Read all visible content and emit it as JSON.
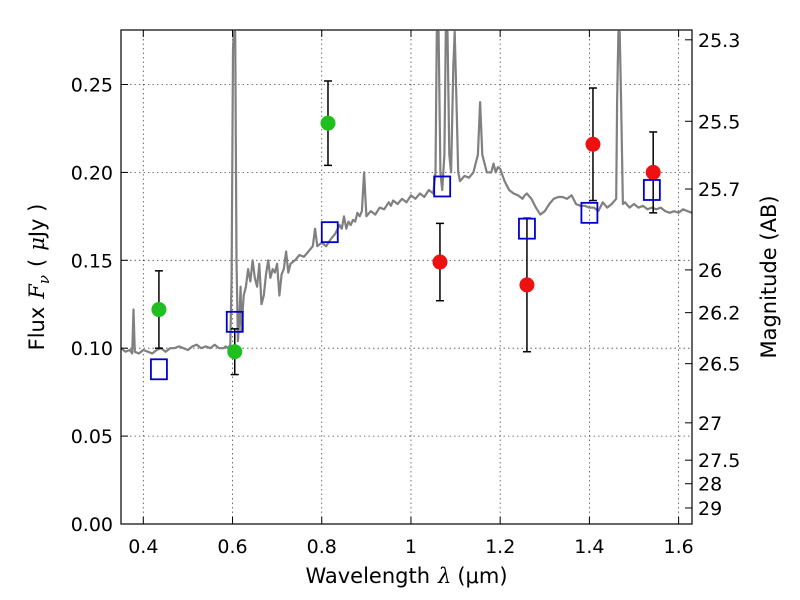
{
  "chart_data": {
    "type": "scatter",
    "xlabel": "Wavelength",
    "xlabel_symbol": "λ",
    "xlabel_unit": "(μm)",
    "ylabel": "Flux",
    "ylabel_symbol": "F",
    "ylabel_subscript": "ν",
    "ylabel_unit_open": "(",
    "ylabel_unit_mu": "μ",
    "ylabel_unit_rest": "Jy )",
    "y2label": "Magnitude (AB)",
    "xlim": [
      0.35,
      1.63
    ],
    "ylim": [
      0.0,
      0.281
    ],
    "grid": true,
    "x_ticks": [
      0.4,
      0.6,
      0.8,
      1.0,
      1.2,
      1.4,
      1.6
    ],
    "x_tick_labels": [
      "0.4",
      "0.6",
      "0.8",
      "1",
      "1.2",
      "1.4",
      "1.6"
    ],
    "y_ticks": [
      0.0,
      0.05,
      0.1,
      0.15,
      0.2,
      0.25
    ],
    "y_tick_labels": [
      "0.00",
      "0.05",
      "0.10",
      "0.15",
      "0.20",
      "0.25"
    ],
    "y2_ticks": [
      {
        "label": "25.3",
        "mag": 25.3
      },
      {
        "label": "25.5",
        "mag": 25.5
      },
      {
        "label": "25.7",
        "mag": 25.7
      },
      {
        "label": "26",
        "mag": 26.0
      },
      {
        "label": "26.2",
        "mag": 26.2
      },
      {
        "label": "26.5",
        "mag": 26.5
      },
      {
        "label": "27",
        "mag": 27.0
      },
      {
        "label": "27.5",
        "mag": 27.5
      },
      {
        "label": "28",
        "mag": 28.0
      },
      {
        "label": "29",
        "mag": 29.0
      }
    ],
    "colors": {
      "green": "#1fbf1f",
      "red": "#ee1111",
      "model_box": "#0000cc",
      "spectrum": "#808080",
      "error": "#000000"
    },
    "series": [
      {
        "name": "observed-green",
        "color": "green",
        "points": [
          {
            "x": 0.435,
            "y": 0.122,
            "err": 0.022
          },
          {
            "x": 0.605,
            "y": 0.098,
            "err": 0.013
          },
          {
            "x": 0.814,
            "y": 0.228,
            "err": 0.024
          }
        ]
      },
      {
        "name": "observed-red",
        "color": "red",
        "points": [
          {
            "x": 1.065,
            "y": 0.149,
            "err": 0.022
          },
          {
            "x": 1.26,
            "y": 0.136,
            "err": 0.038
          },
          {
            "x": 1.408,
            "y": 0.216,
            "err": 0.032
          },
          {
            "x": 1.543,
            "y": 0.2,
            "err": 0.023
          }
        ]
      },
      {
        "name": "model-photometry",
        "color": "model_box",
        "points": [
          {
            "x": 0.435,
            "y": 0.088
          },
          {
            "x": 0.605,
            "y": 0.115
          },
          {
            "x": 0.818,
            "y": 0.166
          },
          {
            "x": 1.07,
            "y": 0.192
          },
          {
            "x": 1.26,
            "y": 0.168
          },
          {
            "x": 1.4,
            "y": 0.177
          },
          {
            "x": 1.54,
            "y": 0.19
          }
        ]
      }
    ],
    "spectrum": [
      [
        0.35,
        0.1
      ],
      [
        0.36,
        0.098
      ],
      [
        0.37,
        0.099
      ],
      [
        0.375,
        0.097
      ],
      [
        0.378,
        0.122
      ],
      [
        0.381,
        0.098
      ],
      [
        0.39,
        0.097
      ],
      [
        0.4,
        0.099
      ],
      [
        0.41,
        0.098
      ],
      [
        0.42,
        0.097
      ],
      [
        0.43,
        0.099
      ],
      [
        0.44,
        0.1
      ],
      [
        0.45,
        0.098
      ],
      [
        0.46,
        0.1
      ],
      [
        0.47,
        0.1
      ],
      [
        0.48,
        0.101
      ],
      [
        0.49,
        0.1
      ],
      [
        0.5,
        0.099
      ],
      [
        0.51,
        0.101
      ],
      [
        0.52,
        0.102
      ],
      [
        0.53,
        0.1
      ],
      [
        0.54,
        0.101
      ],
      [
        0.55,
        0.1
      ],
      [
        0.56,
        0.102
      ],
      [
        0.57,
        0.1
      ],
      [
        0.58,
        0.1
      ],
      [
        0.585,
        0.101
      ],
      [
        0.59,
        0.1
      ],
      [
        0.595,
        0.102
      ],
      [
        0.598,
        0.14
      ],
      [
        0.601,
        0.27
      ],
      [
        0.603,
        0.28
      ],
      [
        0.606,
        0.28
      ],
      [
        0.609,
        0.15
      ],
      [
        0.612,
        0.104
      ],
      [
        0.615,
        0.115
      ],
      [
        0.618,
        0.135
      ],
      [
        0.62,
        0.11
      ],
      [
        0.625,
        0.13
      ],
      [
        0.63,
        0.135
      ],
      [
        0.635,
        0.145
      ],
      [
        0.64,
        0.138
      ],
      [
        0.645,
        0.15
      ],
      [
        0.65,
        0.14
      ],
      [
        0.655,
        0.135
      ],
      [
        0.66,
        0.148
      ],
      [
        0.665,
        0.125
      ],
      [
        0.67,
        0.13
      ],
      [
        0.675,
        0.142
      ],
      [
        0.68,
        0.15
      ],
      [
        0.685,
        0.14
      ],
      [
        0.69,
        0.145
      ],
      [
        0.695,
        0.143
      ],
      [
        0.7,
        0.148
      ],
      [
        0.705,
        0.13
      ],
      [
        0.71,
        0.142
      ],
      [
        0.715,
        0.145
      ],
      [
        0.72,
        0.155
      ],
      [
        0.725,
        0.143
      ],
      [
        0.73,
        0.148
      ],
      [
        0.74,
        0.15
      ],
      [
        0.75,
        0.153
      ],
      [
        0.76,
        0.152
      ],
      [
        0.77,
        0.155
      ],
      [
        0.78,
        0.158
      ],
      [
        0.785,
        0.168
      ],
      [
        0.79,
        0.158
      ],
      [
        0.8,
        0.16
      ],
      [
        0.81,
        0.158
      ],
      [
        0.82,
        0.162
      ],
      [
        0.83,
        0.165
      ],
      [
        0.84,
        0.17
      ],
      [
        0.845,
        0.168
      ],
      [
        0.85,
        0.175
      ],
      [
        0.855,
        0.168
      ],
      [
        0.86,
        0.172
      ],
      [
        0.865,
        0.17
      ],
      [
        0.87,
        0.173
      ],
      [
        0.875,
        0.172
      ],
      [
        0.88,
        0.177
      ],
      [
        0.885,
        0.175
      ],
      [
        0.89,
        0.178
      ],
      [
        0.895,
        0.2
      ],
      [
        0.9,
        0.175
      ],
      [
        0.91,
        0.178
      ],
      [
        0.92,
        0.176
      ],
      [
        0.93,
        0.18
      ],
      [
        0.94,
        0.179
      ],
      [
        0.95,
        0.183
      ],
      [
        0.955,
        0.181
      ],
      [
        0.96,
        0.184
      ],
      [
        0.97,
        0.182
      ],
      [
        0.98,
        0.185
      ],
      [
        0.99,
        0.183
      ],
      [
        1.0,
        0.187
      ],
      [
        1.01,
        0.185
      ],
      [
        1.02,
        0.188
      ],
      [
        1.03,
        0.186
      ],
      [
        1.04,
        0.19
      ],
      [
        1.05,
        0.188
      ],
      [
        1.055,
        0.2
      ],
      [
        1.058,
        0.28
      ],
      [
        1.062,
        0.28
      ],
      [
        1.066,
        0.2
      ],
      [
        1.07,
        0.19
      ],
      [
        1.075,
        0.21
      ],
      [
        1.078,
        0.28
      ],
      [
        1.082,
        0.28
      ],
      [
        1.086,
        0.21
      ],
      [
        1.09,
        0.2
      ],
      [
        1.095,
        0.26
      ],
      [
        1.098,
        0.28
      ],
      [
        1.102,
        0.24
      ],
      [
        1.106,
        0.2
      ],
      [
        1.11,
        0.195
      ],
      [
        1.12,
        0.198
      ],
      [
        1.13,
        0.197
      ],
      [
        1.14,
        0.2
      ],
      [
        1.145,
        0.205
      ],
      [
        1.15,
        0.21
      ],
      [
        1.155,
        0.24
      ],
      [
        1.16,
        0.21
      ],
      [
        1.165,
        0.205
      ],
      [
        1.17,
        0.2
      ],
      [
        1.175,
        0.2
      ],
      [
        1.18,
        0.2
      ],
      [
        1.185,
        0.205
      ],
      [
        1.19,
        0.2
      ],
      [
        1.195,
        0.203
      ],
      [
        1.2,
        0.202
      ],
      [
        1.21,
        0.195
      ],
      [
        1.22,
        0.19
      ],
      [
        1.23,
        0.188
      ],
      [
        1.24,
        0.187
      ],
      [
        1.25,
        0.185
      ],
      [
        1.255,
        0.187
      ],
      [
        1.26,
        0.188
      ],
      [
        1.27,
        0.185
      ],
      [
        1.28,
        0.18
      ],
      [
        1.29,
        0.176
      ],
      [
        1.3,
        0.178
      ],
      [
        1.31,
        0.182
      ],
      [
        1.32,
        0.185
      ],
      [
        1.33,
        0.186
      ],
      [
        1.34,
        0.186
      ],
      [
        1.35,
        0.185
      ],
      [
        1.36,
        0.187
      ],
      [
        1.37,
        0.182
      ],
      [
        1.38,
        0.181
      ],
      [
        1.39,
        0.181
      ],
      [
        1.4,
        0.18
      ],
      [
        1.41,
        0.18
      ],
      [
        1.42,
        0.178
      ],
      [
        1.43,
        0.183
      ],
      [
        1.44,
        0.18
      ],
      [
        1.45,
        0.182
      ],
      [
        1.46,
        0.185
      ],
      [
        1.462,
        0.24
      ],
      [
        1.465,
        0.28
      ],
      [
        1.468,
        0.28
      ],
      [
        1.471,
        0.24
      ],
      [
        1.475,
        0.182
      ],
      [
        1.48,
        0.183
      ],
      [
        1.49,
        0.18
      ],
      [
        1.5,
        0.182
      ],
      [
        1.51,
        0.18
      ],
      [
        1.52,
        0.181
      ],
      [
        1.53,
        0.179
      ],
      [
        1.54,
        0.18
      ],
      [
        1.55,
        0.179
      ],
      [
        1.56,
        0.18
      ],
      [
        1.57,
        0.178
      ],
      [
        1.58,
        0.177
      ],
      [
        1.59,
        0.178
      ],
      [
        1.6,
        0.177
      ],
      [
        1.61,
        0.179
      ],
      [
        1.62,
        0.178
      ],
      [
        1.63,
        0.177
      ]
    ]
  }
}
